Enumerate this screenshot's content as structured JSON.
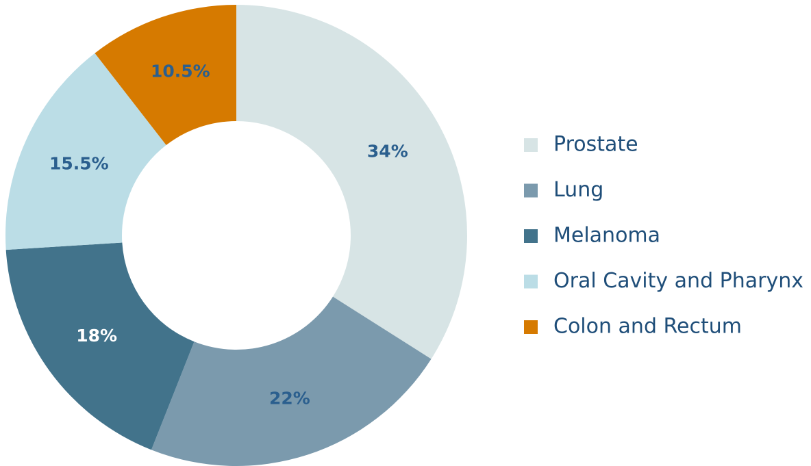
{
  "chart_data": {
    "type": "donut",
    "categories": [
      "Prostate",
      "Lung",
      "Melanoma",
      "Oral Cavity and Pharynx",
      "Colon and Rectum"
    ],
    "values": [
      34,
      22,
      18,
      15.5,
      10.5
    ],
    "value_labels": [
      "34%",
      "22%",
      "18%",
      "15.5%",
      "10.5%"
    ],
    "colors": [
      "#d7e4e5",
      "#7b9aad",
      "#42738b",
      "#bbdde6",
      "#d67a00"
    ],
    "legend": "right"
  }
}
